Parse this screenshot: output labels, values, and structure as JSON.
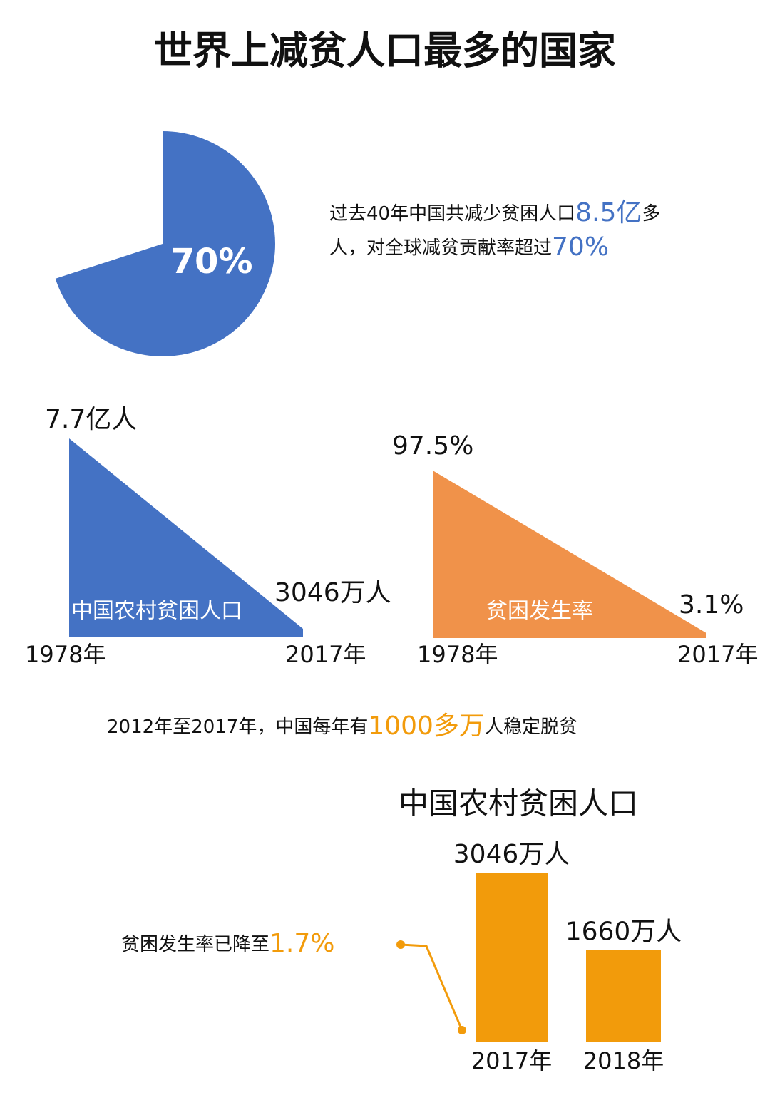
{
  "title": "世界上减贫人口最多的国家",
  "chart_data": [
    {
      "type": "pie",
      "values": [
        70
      ],
      "value_labels": [
        "70%"
      ],
      "color": "#4472c4"
    },
    {
      "type": "triangle",
      "title": "中国农村贫困人口",
      "categories": [
        "1978年",
        "2017年"
      ],
      "values": [
        77000,
        3046
      ],
      "value_labels": [
        "7.7亿人",
        "3046万人"
      ],
      "color": "#4472c4"
    },
    {
      "type": "triangle",
      "title": "贫困发生率",
      "categories": [
        "1978年",
        "2017年"
      ],
      "values": [
        97.5,
        3.1
      ],
      "value_labels": [
        "97.5%",
        "3.1%"
      ],
      "color": "#f0924a"
    },
    {
      "type": "bar",
      "title": "中国农村贫困人口",
      "categories": [
        "2017年",
        "2018年"
      ],
      "values": [
        3046,
        1660
      ],
      "value_labels": [
        "3046万人",
        "1660万人"
      ],
      "color": "#f29b0b"
    }
  ],
  "notes": [
    {
      "lines": [
        [
          "过去40年中国共减少贫困人口",
          "8.5亿",
          "多"
        ],
        [
          "人，对全球减贫贡献率超过",
          "70%"
        ]
      ],
      "highlight_color": "#4472c4"
    },
    {
      "lines": [
        [
          "2012年至2017年，中国每年有",
          "1000多万",
          "人稳定脱贫"
        ]
      ],
      "highlight_color": "#f29b0b"
    },
    {
      "lines": [
        [
          "贫困发生率已降至",
          "1.7%"
        ]
      ],
      "highlight_color": "#f29b0b"
    }
  ]
}
